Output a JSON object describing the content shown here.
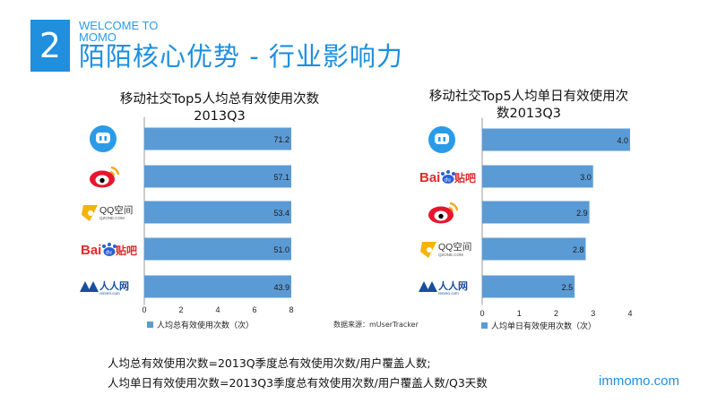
{
  "header": {
    "section_number": "2",
    "welcome_line1": "WELCOME TO",
    "welcome_line2": "MOMO",
    "title": "陌陌核心优势 - 行业影响力"
  },
  "chart_data": [
    {
      "type": "bar",
      "orientation": "horizontal",
      "title": "移动社交Top5人均总有效使用次数",
      "subtitle": "2013Q3",
      "categories": [
        "陌陌",
        "新浪微博",
        "QQ空间",
        "百度贴吧",
        "人人网"
      ],
      "values": [
        71.2,
        57.1,
        53.4,
        51.0,
        43.9
      ],
      "value_labels": [
        "71.2",
        "57.1",
        "53.4",
        "51.0",
        "43.9"
      ],
      "xlim": [
        0,
        8
      ],
      "xticks": [
        "0",
        "2",
        "4",
        "6",
        "8"
      ],
      "legend": "人均总有效使用次数（次）",
      "bar_color": "#5b9bd5"
    },
    {
      "type": "bar",
      "orientation": "horizontal",
      "title": "移动社交Top5人均单日有效使用次",
      "subtitle": "数2013Q3",
      "categories": [
        "陌陌",
        "百度贴吧",
        "新浪微博",
        "QQ空间",
        "人人网"
      ],
      "values": [
        4.0,
        3.0,
        2.9,
        2.8,
        2.5
      ],
      "value_labels": [
        "4.0",
        "3.0",
        "2.9",
        "2.8",
        "2.5"
      ],
      "xlim": [
        0,
        4
      ],
      "xticks": [
        "0",
        "1",
        "2",
        "3",
        "4"
      ],
      "legend": "人均单日有效使用次数（次）",
      "bar_color": "#5b9bd5"
    }
  ],
  "logos": {
    "qq_text": "QQ空间",
    "qq_sub": "QZONE.COM",
    "baidu_text": "Bai",
    "baidu_du": "du",
    "baidu_tieba": "贴吧",
    "renren_text": "人人网",
    "renren_sub": "renren.com"
  },
  "source": "数据来源：mUserTracker",
  "notes": [
    "人均总有效使用次数=2013Q季度总有效使用次数/用户覆盖人数;",
    "人均单日有效使用次数=2013Q3季度总有效使用次数/用户覆盖人数/Q3天数"
  ],
  "footer_site": "immomo.com"
}
